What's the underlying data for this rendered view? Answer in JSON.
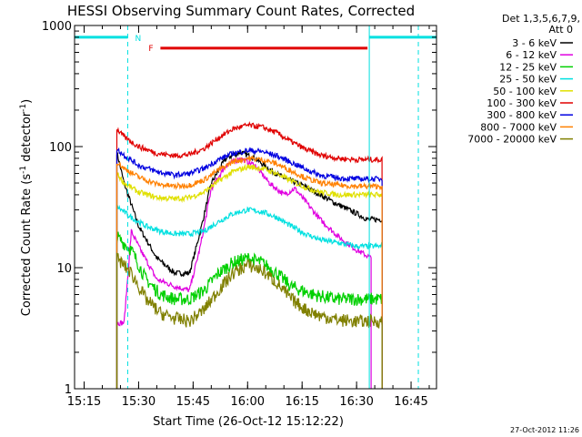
{
  "chart_data": {
    "type": "line",
    "title": "HESSI Observing Summary Count Rates, Corrected",
    "xlabel": "Start Time (26-Oct-12 15:12:22)",
    "ylabel": "Corrected Count Rate (s",
    "ylabel_sup1": "-1",
    "ylabel_mid": " detector",
    "ylabel_sup2": "-1",
    "ylabel_end": ")",
    "yscale": "log",
    "ylim": [
      1,
      1000
    ],
    "xlim": [
      "15:12:22",
      "16:52:00"
    ],
    "x_ticks": [
      "15:15",
      "15:30",
      "15:45",
      "16:00",
      "16:15",
      "16:30",
      "16:45"
    ],
    "y_ticks": [
      "1",
      "10",
      "100",
      "1000"
    ],
    "legend_header": "Det 1,3,5,6,7,9,",
    "legend_att": "Att 0",
    "legend_position": "top-right outside plot",
    "timestamp": "27-Oct-2012 11:26",
    "annotations": {
      "night_label": "N",
      "flare_label": "F",
      "night_color": "#00e0e0",
      "flare_color": "#e00000",
      "night_segments": [
        [
          "15:12:22",
          "15:27:00"
        ],
        [
          "16:33:30",
          "16:52:00"
        ]
      ],
      "night_bounds": [
        "15:27:00",
        "16:33:30",
        "16:47:00"
      ],
      "flare_segment": [
        "15:36:00",
        "16:33:00"
      ],
      "data_span": [
        "15:24:00",
        "16:38:00"
      ]
    },
    "series": [
      {
        "name": "3 - 6 keV",
        "color": "#000000",
        "points": [
          [
            "15:24",
            "90"
          ],
          [
            "15:26",
            "50"
          ],
          [
            "15:30",
            "22"
          ],
          [
            "15:35",
            "12"
          ],
          [
            "15:40",
            "9"
          ],
          [
            "15:44",
            "9"
          ],
          [
            "15:47",
            "20"
          ],
          [
            "15:50",
            "50"
          ],
          [
            "15:54",
            "80"
          ],
          [
            "15:58",
            "90"
          ],
          [
            "16:02",
            "80"
          ],
          [
            "16:06",
            "65"
          ],
          [
            "16:10",
            "55"
          ],
          [
            "16:15",
            "48"
          ],
          [
            "16:20",
            "40"
          ],
          [
            "16:25",
            "33"
          ],
          [
            "16:30",
            "28"
          ],
          [
            "16:33",
            "25"
          ],
          [
            "16:37",
            "25"
          ]
        ]
      },
      {
        "name": "6 - 12 keV",
        "color": "#e000e0",
        "points": [
          [
            "15:24",
            "3.5"
          ],
          [
            "15:26",
            "3.5"
          ],
          [
            "15:28",
            "20"
          ],
          [
            "15:30",
            "15"
          ],
          [
            "15:35",
            "8"
          ],
          [
            "15:40",
            "7"
          ],
          [
            "15:44",
            "6.5"
          ],
          [
            "15:47",
            "15"
          ],
          [
            "15:50",
            "45"
          ],
          [
            "15:54",
            "70"
          ],
          [
            "15:58",
            "80"
          ],
          [
            "16:02",
            "70"
          ],
          [
            "16:06",
            "50"
          ],
          [
            "16:10",
            "40"
          ],
          [
            "16:13",
            "45"
          ],
          [
            "16:16",
            "35"
          ],
          [
            "16:20",
            "25"
          ],
          [
            "16:25",
            "18"
          ],
          [
            "16:30",
            "14"
          ],
          [
            "16:34",
            "12"
          ]
        ]
      },
      {
        "name": "12 - 25 keV",
        "color": "#00d000",
        "points": [
          [
            "15:24",
            "18"
          ],
          [
            "15:28",
            "14"
          ],
          [
            "15:32",
            "8"
          ],
          [
            "15:36",
            "6"
          ],
          [
            "15:40",
            "5.5"
          ],
          [
            "15:44",
            "5.5"
          ],
          [
            "15:48",
            "6.5"
          ],
          [
            "15:52",
            "9"
          ],
          [
            "15:56",
            "11"
          ],
          [
            "16:00",
            "12"
          ],
          [
            "16:04",
            "11"
          ],
          [
            "16:08",
            "9"
          ],
          [
            "16:12",
            "7"
          ],
          [
            "16:18",
            "6"
          ],
          [
            "16:24",
            "5.5"
          ],
          [
            "16:30",
            "5.5"
          ],
          [
            "16:37",
            "5.5"
          ]
        ]
      },
      {
        "name": "25 - 50 keV",
        "color": "#00e0e0",
        "points": [
          [
            "15:24",
            "32"
          ],
          [
            "15:28",
            "26"
          ],
          [
            "15:32",
            "22"
          ],
          [
            "15:36",
            "20"
          ],
          [
            "15:40",
            "19"
          ],
          [
            "15:44",
            "19"
          ],
          [
            "15:48",
            "20"
          ],
          [
            "15:52",
            "24"
          ],
          [
            "15:56",
            "28"
          ],
          [
            "16:00",
            "30"
          ],
          [
            "16:04",
            "29"
          ],
          [
            "16:08",
            "26"
          ],
          [
            "16:12",
            "22"
          ],
          [
            "16:16",
            "19"
          ],
          [
            "16:20",
            "17"
          ],
          [
            "16:25",
            "16"
          ],
          [
            "16:30",
            "15"
          ],
          [
            "16:37",
            "15"
          ]
        ]
      },
      {
        "name": "50 - 100 keV",
        "color": "#e0e000",
        "points": [
          [
            "15:24",
            "60"
          ],
          [
            "15:26",
            "50"
          ],
          [
            "15:30",
            "42"
          ],
          [
            "15:35",
            "38"
          ],
          [
            "15:40",
            "37"
          ],
          [
            "15:44",
            "38"
          ],
          [
            "15:48",
            "42"
          ],
          [
            "15:52",
            "52"
          ],
          [
            "15:56",
            "62"
          ],
          [
            "16:00",
            "68"
          ],
          [
            "16:04",
            "66"
          ],
          [
            "16:08",
            "60"
          ],
          [
            "16:12",
            "52"
          ],
          [
            "16:16",
            "46"
          ],
          [
            "16:20",
            "42"
          ],
          [
            "16:25",
            "40"
          ],
          [
            "16:30",
            "40"
          ],
          [
            "16:37",
            "40"
          ]
        ]
      },
      {
        "name": "100 - 300 keV",
        "color": "#e00000",
        "points": [
          [
            "15:24",
            "140"
          ],
          [
            "15:26",
            "120"
          ],
          [
            "15:30",
            "100"
          ],
          [
            "15:35",
            "88"
          ],
          [
            "15:40",
            "84"
          ],
          [
            "15:44",
            "86"
          ],
          [
            "15:48",
            "96"
          ],
          [
            "15:52",
            "118"
          ],
          [
            "15:56",
            "140"
          ],
          [
            "16:00",
            "150"
          ],
          [
            "16:04",
            "145"
          ],
          [
            "16:08",
            "130"
          ],
          [
            "16:12",
            "110"
          ],
          [
            "16:16",
            "95"
          ],
          [
            "16:20",
            "85"
          ],
          [
            "16:25",
            "80"
          ],
          [
            "16:30",
            "78"
          ],
          [
            "16:37",
            "78"
          ]
        ]
      },
      {
        "name": "300 - 800 keV",
        "color": "#0000e0",
        "points": [
          [
            "15:24",
            "95"
          ],
          [
            "15:26",
            "85"
          ],
          [
            "15:30",
            "70"
          ],
          [
            "15:35",
            "62"
          ],
          [
            "15:40",
            "58"
          ],
          [
            "15:44",
            "60"
          ],
          [
            "15:48",
            "66"
          ],
          [
            "15:52",
            "78"
          ],
          [
            "15:56",
            "88"
          ],
          [
            "16:00",
            "93"
          ],
          [
            "16:04",
            "91"
          ],
          [
            "16:08",
            "84"
          ],
          [
            "16:12",
            "74"
          ],
          [
            "16:16",
            "65"
          ],
          [
            "16:20",
            "58"
          ],
          [
            "16:25",
            "55"
          ],
          [
            "16:30",
            "54"
          ],
          [
            "16:37",
            "54"
          ]
        ]
      },
      {
        "name": "800 - 7000 keV",
        "color": "#ff8000",
        "points": [
          [
            "15:24",
            "75"
          ],
          [
            "15:26",
            "66"
          ],
          [
            "15:30",
            "56"
          ],
          [
            "15:35",
            "49"
          ],
          [
            "15:40",
            "47"
          ],
          [
            "15:44",
            "48"
          ],
          [
            "15:48",
            "53"
          ],
          [
            "15:52",
            "64"
          ],
          [
            "15:56",
            "75"
          ],
          [
            "16:00",
            "80"
          ],
          [
            "16:04",
            "78"
          ],
          [
            "16:08",
            "72"
          ],
          [
            "16:12",
            "63"
          ],
          [
            "16:16",
            "55"
          ],
          [
            "16:20",
            "50"
          ],
          [
            "16:25",
            "48"
          ],
          [
            "16:30",
            "47"
          ],
          [
            "16:37",
            "47"
          ]
        ]
      },
      {
        "name": "7000 - 20000 keV",
        "color": "#808000",
        "points": [
          [
            "15:24",
            "12"
          ],
          [
            "15:28",
            "9"
          ],
          [
            "15:32",
            "5.5"
          ],
          [
            "15:36",
            "4.2"
          ],
          [
            "15:40",
            "3.8"
          ],
          [
            "15:44",
            "3.6"
          ],
          [
            "15:48",
            "4.5"
          ],
          [
            "15:52",
            "6.5"
          ],
          [
            "15:56",
            "9"
          ],
          [
            "16:00",
            "10.5"
          ],
          [
            "16:04",
            "9.5"
          ],
          [
            "16:08",
            "7.5"
          ],
          [
            "16:12",
            "5.5"
          ],
          [
            "16:16",
            "4.5"
          ],
          [
            "16:20",
            "4"
          ],
          [
            "16:25",
            "3.7"
          ],
          [
            "16:30",
            "3.6"
          ],
          [
            "16:37",
            "3.6"
          ]
        ]
      }
    ]
  }
}
